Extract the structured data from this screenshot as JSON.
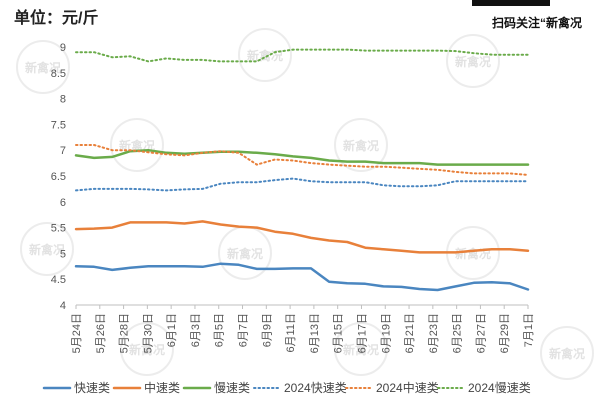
{
  "header": {
    "unit_label": "单位：元/斤",
    "qr_cta": "扫码关注“新禽况"
  },
  "watermark_text": "新禽况",
  "chart_data": {
    "type": "line",
    "ylim": [
      4,
      9
    ],
    "yticks": [
      "4",
      "4.5",
      "5",
      "5.5",
      "6",
      "6.5",
      "7",
      "7.5",
      "8",
      "8.5",
      "9"
    ],
    "x_labels": [
      "5月24日",
      "5月26日",
      "5月28日",
      "5月30日",
      "6月1日",
      "6月3日",
      "6月5日",
      "6月7日",
      "6月9日",
      "6月11日",
      "6月13日",
      "6月15日",
      "6月17日",
      "6月19日",
      "6月21日",
      "6月23日",
      "6月25日",
      "6月27日",
      "6月29日",
      "7月1日"
    ],
    "legend_position": "bottom",
    "series": [
      {
        "name": "快速类",
        "color": "#4a86c0",
        "style": "solid",
        "values": [
          4.75,
          4.74,
          4.68,
          4.72,
          4.75,
          4.75,
          4.75,
          4.74,
          4.8,
          4.78,
          4.7,
          4.7,
          4.71,
          4.71,
          4.45,
          4.42,
          4.41,
          4.36,
          4.35,
          4.31,
          4.29,
          4.36,
          4.43,
          4.44,
          4.42,
          4.3
        ]
      },
      {
        "name": "中速类",
        "color": "#e8803a",
        "style": "solid",
        "values": [
          5.47,
          5.48,
          5.5,
          5.6,
          5.6,
          5.6,
          5.58,
          5.62,
          5.56,
          5.52,
          5.5,
          5.42,
          5.38,
          5.3,
          5.25,
          5.22,
          5.11,
          5.08,
          5.05,
          5.02,
          5.02,
          5.02,
          5.05,
          5.08,
          5.08,
          5.05
        ]
      },
      {
        "name": "慢速类",
        "color": "#6aab4a",
        "style": "solid",
        "values": [
          6.9,
          6.85,
          6.87,
          6.98,
          7.0,
          6.95,
          6.93,
          6.95,
          6.97,
          6.97,
          6.95,
          6.92,
          6.88,
          6.85,
          6.8,
          6.78,
          6.78,
          6.75,
          6.75,
          6.75,
          6.72,
          6.72,
          6.72,
          6.72,
          6.72,
          6.72
        ]
      },
      {
        "name": "2024快速类",
        "color": "#4a86c0",
        "style": "dotted",
        "values": [
          6.22,
          6.25,
          6.25,
          6.25,
          6.24,
          6.22,
          6.24,
          6.25,
          6.35,
          6.38,
          6.38,
          6.42,
          6.45,
          6.4,
          6.38,
          6.38,
          6.38,
          6.32,
          6.3,
          6.3,
          6.32,
          6.4,
          6.4,
          6.4,
          6.4,
          6.4
        ]
      },
      {
        "name": "2024中速类",
        "color": "#e8803a",
        "style": "dotted",
        "values": [
          7.1,
          7.1,
          7.0,
          7.0,
          6.96,
          6.92,
          6.9,
          6.95,
          6.98,
          6.95,
          6.72,
          6.82,
          6.8,
          6.75,
          6.72,
          6.7,
          6.68,
          6.68,
          6.66,
          6.64,
          6.62,
          6.58,
          6.55,
          6.55,
          6.55,
          6.52
        ]
      },
      {
        "name": "2024慢速类",
        "color": "#6aab4a",
        "style": "dotted",
        "values": [
          8.9,
          8.9,
          8.8,
          8.82,
          8.72,
          8.78,
          8.75,
          8.75,
          8.72,
          8.72,
          8.72,
          8.9,
          8.95,
          8.95,
          8.95,
          8.95,
          8.93,
          8.93,
          8.93,
          8.93,
          8.93,
          8.92,
          8.88,
          8.85,
          8.85,
          8.85
        ]
      }
    ]
  }
}
